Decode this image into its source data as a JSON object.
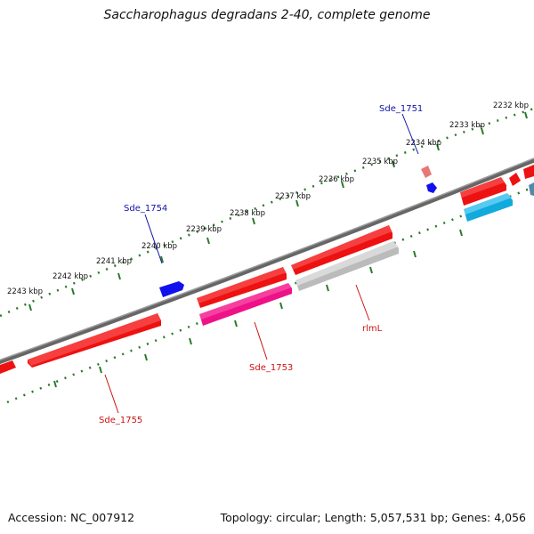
{
  "title": "Saccharophagus degradans 2-40, complete genome",
  "footer": {
    "accession": "Accession: NC_007912",
    "summary": "Topology: circular; Length: 5,057,531 bp; Genes: 4,056"
  },
  "colors": {
    "backbone": "#777777",
    "tick": "#2a7a2a",
    "red_gene": "#ee1111",
    "pink_gene": "#ee1188",
    "gray_gene": "#bbbbbb",
    "blue_gene": "#1111ee",
    "cyan_gene": "#11aadd",
    "steel_gene": "#5588aa",
    "light_red_gene": "#e87878",
    "forward_label": "#1111aa",
    "reverse_label": "#cc1111"
  },
  "ticks": [
    {
      "label": "2232 kbp"
    },
    {
      "label": "2233 kbp"
    },
    {
      "label": "2234 kbp"
    },
    {
      "label": "2235 kbp"
    },
    {
      "label": "2236 kbp"
    },
    {
      "label": "2237 kbp"
    },
    {
      "label": "2238 kbp"
    },
    {
      "label": "2239 kbp"
    },
    {
      "label": "2240 kbp"
    },
    {
      "label": "2241 kbp"
    },
    {
      "label": "2242 kbp"
    },
    {
      "label": "2243 kbp"
    }
  ],
  "gene_labels": {
    "sde_1751": "Sde_1751",
    "sde_1754": "Sde_1754",
    "rlml": "rlmL",
    "sde_1753": "Sde_1753",
    "sde_1755": "Sde_1755"
  }
}
